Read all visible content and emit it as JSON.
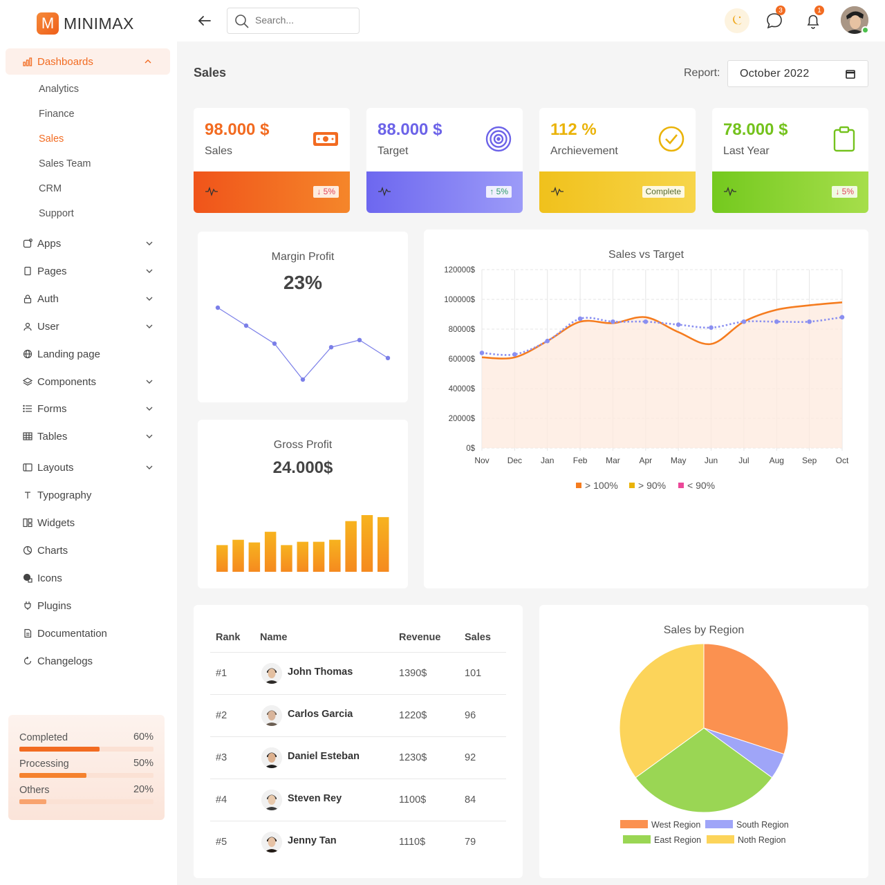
{
  "app": {
    "logo_letter": "M",
    "name": "MINIMAX"
  },
  "sidebar": {
    "dashboards": {
      "label": "Dashboards",
      "items": [
        "Analytics",
        "Finance",
        "Sales",
        "Sales Team",
        "CRM",
        "Support"
      ],
      "active": "Sales"
    },
    "items": [
      {
        "label": "Apps",
        "icon": "apps-icon",
        "has_children": true
      },
      {
        "label": "Pages",
        "icon": "page-icon",
        "has_children": true
      },
      {
        "label": "Auth",
        "icon": "lock-icon",
        "has_children": true
      },
      {
        "label": "User",
        "icon": "user-icon",
        "has_children": true
      },
      {
        "label": "Landing page",
        "icon": "globe-icon",
        "has_children": false
      },
      {
        "label": "Components",
        "icon": "layers-icon",
        "has_children": true
      },
      {
        "label": "Forms",
        "icon": "list-icon",
        "has_children": true
      },
      {
        "label": "Tables",
        "icon": "table-icon",
        "has_children": true
      },
      {
        "label": "Layouts",
        "icon": "layout-icon",
        "has_children": true
      },
      {
        "label": "Typography",
        "icon": "typography-icon",
        "has_children": false
      },
      {
        "label": "Widgets",
        "icon": "widgets-icon",
        "has_children": false
      },
      {
        "label": "Charts",
        "icon": "chart-pie-icon",
        "has_children": false
      },
      {
        "label": "Icons",
        "icon": "shapes-icon",
        "has_children": false
      },
      {
        "label": "Plugins",
        "icon": "plug-icon",
        "has_children": false
      },
      {
        "label": "Documentation",
        "icon": "document-icon",
        "has_children": false
      },
      {
        "label": "Changelogs",
        "icon": "refresh-icon",
        "has_children": false
      }
    ],
    "progress": [
      {
        "label": "Completed",
        "value": "60%",
        "fraction": 0.6,
        "color": "#f26b21"
      },
      {
        "label": "Processing",
        "value": "50%",
        "fraction": 0.5,
        "color": "#f5822e"
      },
      {
        "label": "Others",
        "value": "20%",
        "fraction": 0.2,
        "color": "#f8a36e"
      }
    ]
  },
  "header": {
    "search_placeholder": "Search...",
    "messages_count": "3",
    "notifications_count": "1"
  },
  "page": {
    "title": "Sales",
    "report_label": "Report:",
    "report_value": "October 2022"
  },
  "stats": [
    {
      "value": "98.000 $",
      "label": "Sales",
      "chip": "↓ 5%",
      "color": "#f26b21",
      "band": [
        "#f0541a",
        "#f5862a"
      ],
      "chip_color": "#e0445a",
      "icon": "money-icon"
    },
    {
      "value": "88.000 $",
      "label": "Target",
      "chip": "↑ 5%",
      "color": "#6c63e8",
      "band": [
        "#6d67ef",
        "#9c9bf8"
      ],
      "chip_color": "#2c9a6a",
      "icon": "target-icon"
    },
    {
      "value": "112 %",
      "label": "Archievement",
      "chip": "Complete",
      "color": "#eab308",
      "band": [
        "#f0c11c",
        "#f7d54a"
      ],
      "chip_color": "#556b2f",
      "icon": "check-circle-icon"
    },
    {
      "value": "78.000 $",
      "label": "Last Year",
      "chip": "↓ 5%",
      "color": "#74c21d",
      "band": [
        "#74c91e",
        "#a6de4b"
      ],
      "chip_color": "#e0445a",
      "icon": "clipboard-icon"
    }
  ],
  "margin_profit": {
    "title": "Margin Profit",
    "value": "23%",
    "chart_data": {
      "type": "line",
      "values": [
        10,
        7.5,
        5,
        0,
        4.5,
        5.5,
        3
      ],
      "color": "#7b7fe8"
    }
  },
  "gross_profit": {
    "title": "Gross Profit",
    "value": "24.000$",
    "chart_data": {
      "type": "bar",
      "values": [
        40,
        48,
        44,
        60,
        40,
        45,
        45,
        48,
        76,
        85,
        82
      ],
      "color": "#f7a21f"
    }
  },
  "sales_vs_target": {
    "title": "Sales vs Target",
    "chart_data": {
      "type": "line",
      "categories": [
        "Nov",
        "Dec",
        "Jan",
        "Feb",
        "Mar",
        "Apr",
        "May",
        "Jun",
        "Jul",
        "Aug",
        "Sep",
        "Oct"
      ],
      "yticks": [
        "0$",
        "20000$",
        "40000$",
        "60000$",
        "80000$",
        "100000$",
        "120000$"
      ],
      "ylim": [
        0,
        120000
      ],
      "series": [
        {
          "values": [
            61000,
            61000,
            72000,
            85000,
            84000,
            88000,
            78000,
            70000,
            85000,
            93000,
            96000,
            98000
          ],
          "color": "#f57c1f",
          "style": "solid-area"
        },
        {
          "values": [
            64000,
            63000,
            72000,
            87000,
            85000,
            85000,
            83000,
            81000,
            85000,
            85000,
            85000,
            88000
          ],
          "color": "#8a8ff0",
          "style": "dotted"
        }
      ],
      "legend": [
        {
          "label": "> 100%",
          "color": "#f57c1f"
        },
        {
          "label": "> 90%",
          "color": "#eab308"
        },
        {
          "label": "< 90%",
          "color": "#ec4899"
        }
      ],
      "legend_position": "bottom"
    }
  },
  "table": {
    "headers": [
      "Rank",
      "Name",
      "Revenue",
      "Sales"
    ],
    "rows": [
      {
        "rank": "#1",
        "name": "John Thomas",
        "revenue": "1390$",
        "sales": "101"
      },
      {
        "rank": "#2",
        "name": "Carlos Garcia",
        "revenue": "1220$",
        "sales": "96"
      },
      {
        "rank": "#3",
        "name": "Daniel Esteban",
        "revenue": "1230$",
        "sales": "92"
      },
      {
        "rank": "#4",
        "name": "Steven Rey",
        "revenue": "1100$",
        "sales": "84"
      },
      {
        "rank": "#5",
        "name": "Jenny Tan",
        "revenue": "1110$",
        "sales": "79"
      }
    ]
  },
  "sales_by_region": {
    "title": "Sales by Region",
    "chart_data": {
      "type": "pie",
      "slices": [
        {
          "label": "West Region",
          "value": 30,
          "color": "#fb9150"
        },
        {
          "label": "South Region",
          "value": 5,
          "color": "#9fa5f8"
        },
        {
          "label": "East Region",
          "value": 30,
          "color": "#9ad654"
        },
        {
          "label": "Noth Region",
          "value": 35,
          "color": "#fcd45a"
        }
      ],
      "legend_position": "bottom"
    }
  }
}
